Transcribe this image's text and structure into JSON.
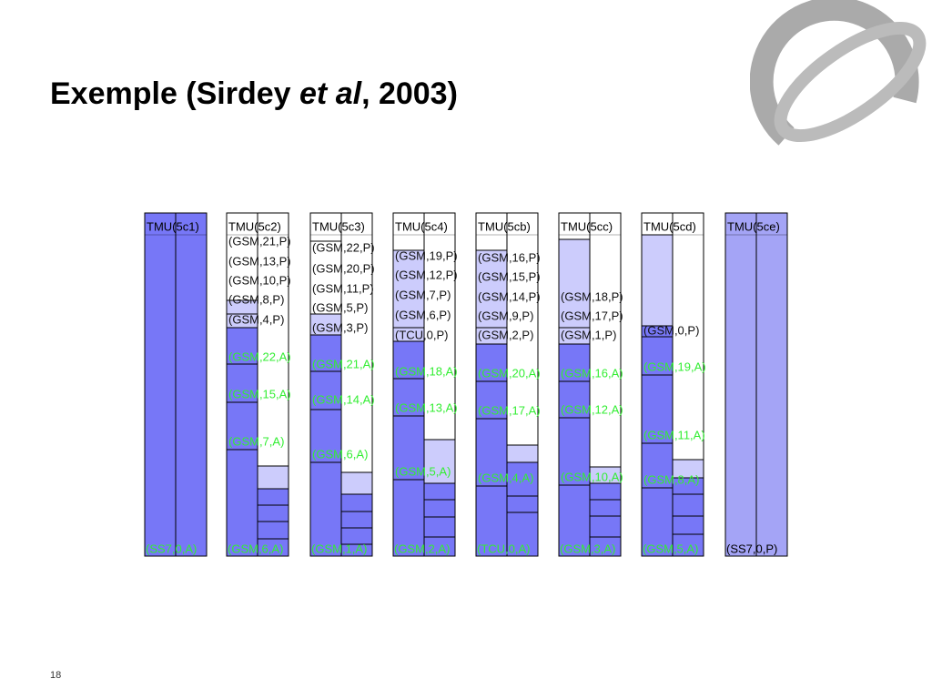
{
  "title": {
    "prefix": "Exemple (Sirdey ",
    "italic": "et al",
    "suffix": ", 2003)"
  },
  "columns": [
    {
      "header": "TMU(5c1)",
      "labels": [],
      "bottom": "(SS7,0,A)"
    },
    {
      "header": "TMU(5c2)",
      "labels": [
        "(GSM,21,P)",
        "(GSM,13,P)",
        "(GSM,10,P)",
        "(GSM,8,P)",
        "(GSM,4,P)",
        "(GSM,22,A)",
        "(GSM,15,A)",
        "(GSM,7,A)"
      ],
      "bottom": "(GSM,6,A)"
    },
    {
      "header": "TMU(5c3)",
      "labels": [
        "(GSM,22,P)",
        "(GSM,20,P)",
        "(GSM,11,P)",
        "(GSM,5,P)",
        "(GSM,3,P)",
        "(GSM,21,A)",
        "(GSM,14,A)",
        "(GSM,6,A)"
      ],
      "bottom": "(GSM,1,A)"
    },
    {
      "header": "TMU(5c4)",
      "labels": [
        "(GSM,19,P)",
        "(GSM,12,P)",
        "(GSM,7,P)",
        "(GSM,6,P)",
        "(TCU,0,P)",
        "(GSM,18,A)",
        "(GSM,13,A)",
        "(GSM,5,A)"
      ],
      "bottom": "(GSM,2,A)"
    },
    {
      "header": "TMU(5cb)",
      "labels": [
        "(GSM,16,P)",
        "(GSM,15,P)",
        "(GSM,14,P)",
        "(GSM,9,P)",
        "(GSM,2,P)",
        "(GSM,20,A)",
        "(GSM,17,A)",
        "(GSM,4,A)"
      ],
      "bottom": "(TCU,0,A)"
    },
    {
      "header": "TMU(5cc)",
      "labels": [
        "(GSM,18,P)",
        "(GSM,17,P)",
        "(GSM,1,P)",
        "(GSM,16,A)",
        "(GSM,12,A)",
        "(GSM,10,A)"
      ],
      "bottom": "(GSM,3,A)"
    },
    {
      "header": "TMU(5cd)",
      "labels": [
        "(GSM,0,P)",
        "(GSM,19,A)",
        "(GSM,11,A)",
        "(GSM,8,A)"
      ],
      "bottom": "(GSM,5,A)"
    },
    {
      "header": "TMU(5ce)",
      "labels": [],
      "bottom": "(SS7,0,P)"
    }
  ],
  "page_number": "18"
}
